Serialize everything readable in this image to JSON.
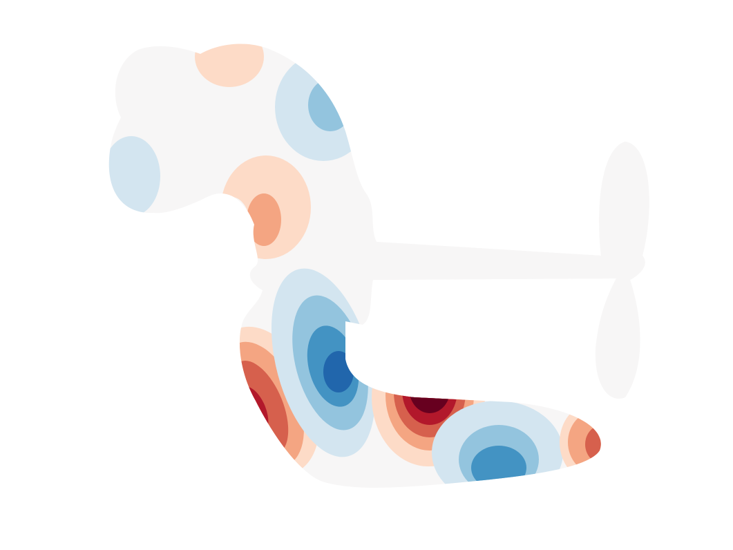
{
  "figure": {
    "kind": "filled contour field on a free-form shape",
    "title": "",
    "colors": {
      "background": "#ffffff",
      "neutral": "#f7f6f6",
      "blue_1": "#d3e5f0",
      "blue_2": "#93c4de",
      "blue_3": "#4393c3",
      "blue_4": "#2166ac",
      "red_1": "#fddbc7",
      "red_2": "#f4a582",
      "red_3": "#d6604d",
      "red_4": "#b2182b",
      "red_5": "#67001f"
    }
  }
}
